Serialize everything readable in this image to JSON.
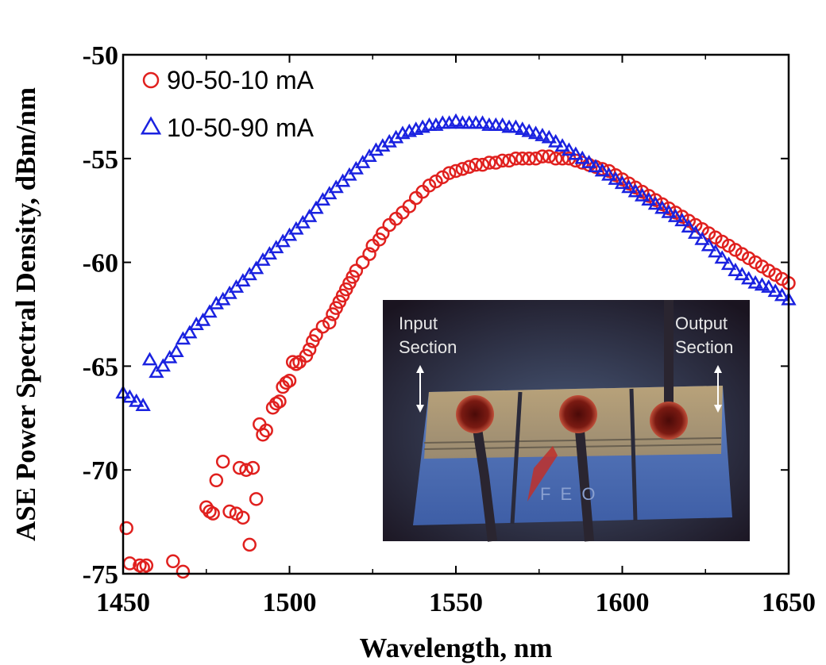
{
  "chart_data": {
    "type": "scatter",
    "xlabel": "Wavelength, nm",
    "ylabel": "ASE Power Spectral Density, dBm/nm",
    "xlim": [
      1450,
      1650
    ],
    "ylim": [
      -75,
      -50
    ],
    "xticks": [
      "1450",
      "1500",
      "1550",
      "1600",
      "1650"
    ],
    "yticks": [
      "-50",
      "-55",
      "-60",
      "-65",
      "-70",
      "-75"
    ],
    "grid": false,
    "legend_position": "top-left",
    "series": [
      {
        "name": "90-50-10 mA",
        "marker": "circle",
        "color": "#e0201e",
        "x": [
          1451,
          1452,
          1455,
          1456,
          1457,
          1465,
          1468,
          1475,
          1476,
          1477,
          1478,
          1480,
          1482,
          1484,
          1485,
          1486,
          1487,
          1488,
          1489,
          1490,
          1491,
          1492,
          1493,
          1495,
          1496,
          1497,
          1498,
          1499,
          1500,
          1501,
          1502,
          1503,
          1505,
          1506,
          1507,
          1508,
          1510,
          1512,
          1513,
          1514,
          1515,
          1516,
          1517,
          1518,
          1519,
          1520,
          1522,
          1524,
          1525,
          1527,
          1528,
          1530,
          1532,
          1534,
          1536,
          1538,
          1540,
          1542,
          1544,
          1546,
          1548,
          1550,
          1552,
          1554,
          1556,
          1558,
          1560,
          1562,
          1564,
          1566,
          1568,
          1570,
          1572,
          1574,
          1576,
          1578,
          1580,
          1582,
          1584,
          1586,
          1588,
          1590,
          1592,
          1594,
          1596,
          1598,
          1600,
          1602,
          1604,
          1606,
          1608,
          1610,
          1612,
          1614,
          1616,
          1618,
          1620,
          1622,
          1624,
          1626,
          1628,
          1630,
          1632,
          1634,
          1636,
          1638,
          1640,
          1642,
          1644,
          1646,
          1648,
          1650
        ],
        "y": [
          -72.8,
          -74.5,
          -74.6,
          -74.7,
          -74.6,
          -74.4,
          -74.9,
          -71.8,
          -72.0,
          -72.1,
          -70.5,
          -69.6,
          -72.0,
          -72.1,
          -69.9,
          -72.3,
          -70.0,
          -73.6,
          -69.9,
          -71.4,
          -67.8,
          -68.3,
          -68.1,
          -67.0,
          -66.8,
          -66.7,
          -66.0,
          -65.8,
          -65.7,
          -64.8,
          -64.9,
          -64.8,
          -64.5,
          -64.2,
          -63.8,
          -63.5,
          -63.1,
          -62.9,
          -62.5,
          -62.2,
          -61.9,
          -61.6,
          -61.3,
          -61.0,
          -60.7,
          -60.4,
          -60.0,
          -59.6,
          -59.2,
          -58.9,
          -58.6,
          -58.2,
          -57.9,
          -57.6,
          -57.3,
          -56.9,
          -56.6,
          -56.3,
          -56.1,
          -55.9,
          -55.7,
          -55.6,
          -55.5,
          -55.4,
          -55.3,
          -55.3,
          -55.2,
          -55.2,
          -55.1,
          -55.1,
          -55.0,
          -55.0,
          -55.0,
          -55.0,
          -54.9,
          -54.9,
          -55.0,
          -55.0,
          -55.0,
          -55.1,
          -55.2,
          -55.3,
          -55.4,
          -55.5,
          -55.6,
          -55.8,
          -56.0,
          -56.2,
          -56.4,
          -56.6,
          -56.8,
          -57.0,
          -57.2,
          -57.4,
          -57.6,
          -57.8,
          -58.0,
          -58.2,
          -58.4,
          -58.6,
          -58.8,
          -59.0,
          -59.2,
          -59.4,
          -59.6,
          -59.8,
          -60.0,
          -60.2,
          -60.4,
          -60.6,
          -60.8,
          -61.0
        ]
      },
      {
        "name": "10-50-90 mA",
        "marker": "triangle",
        "color": "#1a22e0",
        "x": [
          1450,
          1452,
          1454,
          1456,
          1458,
          1460,
          1462,
          1464,
          1466,
          1468,
          1470,
          1472,
          1474,
          1476,
          1478,
          1480,
          1482,
          1484,
          1486,
          1488,
          1490,
          1492,
          1494,
          1496,
          1498,
          1500,
          1502,
          1504,
          1506,
          1508,
          1510,
          1512,
          1514,
          1516,
          1518,
          1520,
          1522,
          1524,
          1526,
          1528,
          1530,
          1532,
          1534,
          1536,
          1538,
          1540,
          1542,
          1544,
          1546,
          1548,
          1550,
          1552,
          1554,
          1556,
          1558,
          1560,
          1562,
          1564,
          1566,
          1568,
          1570,
          1572,
          1574,
          1576,
          1578,
          1580,
          1582,
          1584,
          1586,
          1588,
          1590,
          1592,
          1594,
          1596,
          1598,
          1600,
          1602,
          1604,
          1606,
          1608,
          1610,
          1612,
          1614,
          1616,
          1618,
          1620,
          1622,
          1624,
          1626,
          1628,
          1630,
          1632,
          1634,
          1636,
          1638,
          1640,
          1642,
          1644,
          1646,
          1648,
          1650
        ],
        "y": [
          -66.3,
          -66.5,
          -66.7,
          -66.9,
          -64.7,
          -65.3,
          -65.0,
          -64.6,
          -64.3,
          -63.7,
          -63.4,
          -63.0,
          -62.8,
          -62.4,
          -62.0,
          -61.8,
          -61.5,
          -61.2,
          -60.9,
          -60.6,
          -60.3,
          -59.9,
          -59.6,
          -59.3,
          -59.0,
          -58.7,
          -58.4,
          -58.1,
          -57.8,
          -57.4,
          -57.0,
          -56.7,
          -56.4,
          -56.1,
          -55.8,
          -55.5,
          -55.2,
          -54.9,
          -54.6,
          -54.4,
          -54.2,
          -54.0,
          -53.8,
          -53.7,
          -53.6,
          -53.5,
          -53.4,
          -53.4,
          -53.3,
          -53.3,
          -53.2,
          -53.3,
          -53.3,
          -53.3,
          -53.3,
          -53.4,
          -53.4,
          -53.4,
          -53.5,
          -53.5,
          -53.6,
          -53.7,
          -53.8,
          -53.9,
          -54.0,
          -54.2,
          -54.4,
          -54.6,
          -54.8,
          -55.0,
          -55.2,
          -55.4,
          -55.6,
          -55.8,
          -56.0,
          -56.2,
          -56.4,
          -56.6,
          -56.8,
          -57.0,
          -57.2,
          -57.4,
          -57.6,
          -57.8,
          -58.0,
          -58.3,
          -58.6,
          -58.9,
          -59.2,
          -59.5,
          -59.8,
          -60.1,
          -60.4,
          -60.6,
          -60.8,
          -61.0,
          -61.1,
          -61.2,
          -61.4,
          -61.6,
          -61.8
        ]
      }
    ]
  },
  "inset": {
    "labels": {
      "input_line1": "Input",
      "input_line2": "Section",
      "output_line1": "Output",
      "output_line2": "Section",
      "chip_mark": "F E O"
    }
  }
}
